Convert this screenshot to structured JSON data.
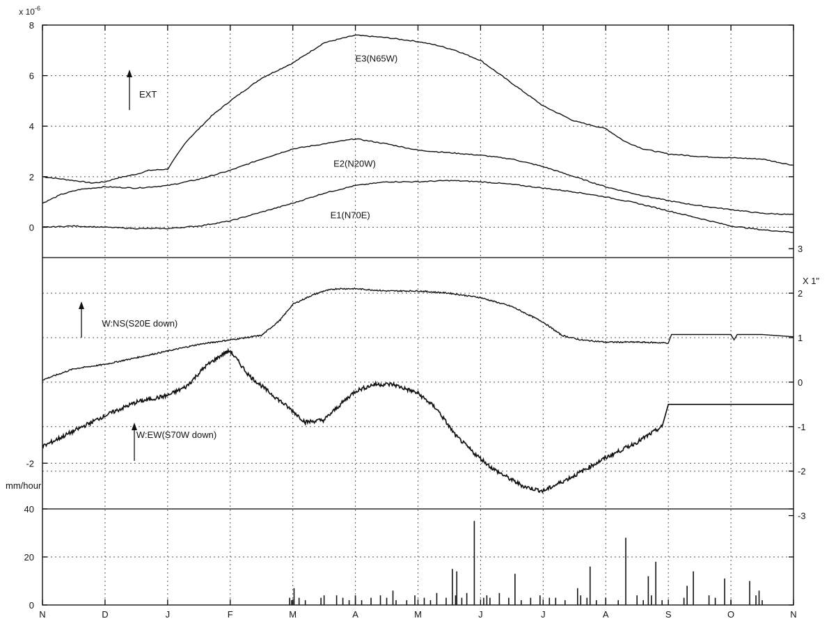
{
  "chart_data": {
    "type": "line",
    "months": [
      "N",
      "D",
      "J",
      "F",
      "M",
      "A",
      "M",
      "J",
      "J",
      "A",
      "S",
      "O",
      "N"
    ],
    "x_domain": [
      0,
      12
    ],
    "panels": [
      {
        "id": "strain",
        "y_multiplier_label": "x 10",
        "y_exponent": "-6",
        "ylim": [
          -1.2,
          8
        ],
        "yticks": [
          "8",
          "6",
          "4",
          "2",
          "0"
        ],
        "yticks_values": [
          8,
          6,
          4,
          2,
          0
        ],
        "arrow_label": "EXT",
        "series": [
          {
            "name": "E3(N65W)",
            "x": [
              0,
              0.5,
              0.8,
              1.0,
              1.2,
              1.5,
              1.7,
              2.0,
              2.3,
              2.7,
              3.0,
              3.5,
              4.0,
              4.5,
              5.0,
              5.5,
              6.0,
              6.3,
              6.6,
              7.0,
              7.5,
              8.0,
              8.5,
              9.0,
              9.3,
              9.6,
              10.0,
              10.5,
              11.0,
              11.5,
              12.0
            ],
            "y": [
              2.0,
              1.85,
              1.75,
              1.8,
              1.95,
              2.1,
              2.25,
              2.3,
              3.4,
              4.4,
              5.0,
              5.9,
              6.5,
              7.3,
              7.6,
              7.5,
              7.35,
              7.2,
              7.0,
              6.6,
              5.7,
              4.8,
              4.2,
              3.9,
              3.4,
              3.1,
              2.9,
              2.8,
              2.75,
              2.7,
              2.45
            ]
          },
          {
            "name": "E2(N20W)",
            "x": [
              0,
              0.3,
              0.6,
              1.0,
              1.5,
              2.0,
              2.5,
              3.0,
              3.5,
              4.0,
              4.5,
              5.0,
              5.5,
              6.0,
              6.5,
              7.0,
              7.5,
              8.0,
              8.5,
              9.0,
              9.5,
              10.0,
              10.5,
              11.0,
              11.5,
              12.0
            ],
            "y": [
              0.95,
              1.3,
              1.5,
              1.6,
              1.55,
              1.65,
              1.9,
              2.25,
              2.7,
              3.1,
              3.3,
              3.5,
              3.3,
              3.05,
              2.95,
              2.85,
              2.7,
              2.4,
              2.0,
              1.6,
              1.3,
              1.05,
              0.85,
              0.7,
              0.55,
              0.5
            ]
          },
          {
            "name": "E1(N70E)",
            "x": [
              0,
              0.5,
              1.0,
              1.5,
              2.0,
              2.5,
              3.0,
              3.5,
              4.0,
              4.5,
              5.0,
              5.5,
              6.0,
              6.5,
              7.0,
              7.5,
              8.0,
              8.5,
              9.0,
              9.5,
              10.0,
              10.5,
              11.0,
              11.5,
              12.0
            ],
            "y": [
              0.0,
              0.05,
              0.0,
              -0.05,
              -0.05,
              0.05,
              0.25,
              0.6,
              0.95,
              1.35,
              1.65,
              1.8,
              1.8,
              1.85,
              1.8,
              1.7,
              1.55,
              1.4,
              1.2,
              0.95,
              0.65,
              0.35,
              0.05,
              -0.1,
              -0.2
            ]
          }
        ]
      },
      {
        "id": "tilt",
        "left_ylim": [
          -2.7,
          1.15
        ],
        "left_yticks": [
          "-2"
        ],
        "left_yticks_values": [
          -2
        ],
        "right_multiplier_label": "X 1\"",
        "right_ylim": [
          -2.85,
          2.8
        ],
        "right_yticks": [
          "3",
          "2",
          "1",
          "0",
          "-1",
          "-2",
          "-3"
        ],
        "right_yticks_values": [
          3,
          2,
          1,
          0,
          -1,
          -2,
          -3
        ],
        "series": [
          {
            "name": "W:NS(S20E down)",
            "axis": "right",
            "x": [
              0,
              0.5,
              1.0,
              1.5,
              2.0,
              2.5,
              3.0,
              3.5,
              3.8,
              4.0,
              4.3,
              4.5,
              4.7,
              5.0,
              5.5,
              6.0,
              6.5,
              7.0,
              7.5,
              8.0,
              8.3,
              8.6,
              9.0,
              9.5,
              10.0,
              10.05,
              10.5,
              11.0,
              11.05,
              11.1,
              11.5,
              12.0
            ],
            "y": [
              0.05,
              0.3,
              0.4,
              0.55,
              0.7,
              0.85,
              0.95,
              1.05,
              1.4,
              1.75,
              1.95,
              2.05,
              2.1,
              2.1,
              2.05,
              2.05,
              2.0,
              1.9,
              1.7,
              1.35,
              1.05,
              0.95,
              0.9,
              0.9,
              0.88,
              1.07,
              1.07,
              1.07,
              0.95,
              1.07,
              1.07,
              1.02
            ]
          },
          {
            "name": "W:EW(S70W down)",
            "axis": "right",
            "x": [
              0,
              0.5,
              1.0,
              1.5,
              2.0,
              2.3,
              2.6,
              2.9,
              3.0,
              3.3,
              3.6,
              4.0,
              4.2,
              4.5,
              4.8,
              5.0,
              5.3,
              5.6,
              6.0,
              6.3,
              6.6,
              6.9,
              7.2,
              7.5,
              7.7,
              8.0,
              8.5,
              9.0,
              9.5,
              9.9,
              10.0,
              10.5,
              11.0,
              11.5,
              12.0
            ],
            "y": [
              -1.45,
              -1.1,
              -0.75,
              -0.45,
              -0.3,
              -0.1,
              0.35,
              0.65,
              0.7,
              0.15,
              -0.2,
              -0.65,
              -0.9,
              -0.85,
              -0.45,
              -0.2,
              -0.05,
              -0.05,
              -0.25,
              -0.6,
              -1.2,
              -1.6,
              -1.95,
              -2.2,
              -2.35,
              -2.45,
              -2.1,
              -1.7,
              -1.35,
              -1.0,
              -0.5,
              -0.5,
              -0.5,
              -0.5,
              -0.5
            ]
          }
        ]
      },
      {
        "id": "rain",
        "type": "bar",
        "ylabel": "mm/hour",
        "ylim": [
          0,
          40
        ],
        "yticks": [
          "40",
          "20",
          "0"
        ],
        "yticks_values": [
          40,
          20,
          0
        ],
        "bars": {
          "x": [
            3.95,
            3.98,
            4.02,
            4.1,
            4.2,
            4.45,
            4.5,
            4.7,
            4.8,
            4.9,
            5.0,
            5.1,
            5.25,
            5.4,
            5.5,
            5.6,
            5.65,
            5.82,
            5.95,
            6.1,
            6.2,
            6.3,
            6.45,
            6.55,
            6.6,
            6.62,
            6.7,
            6.78,
            6.9,
            7.05,
            7.1,
            7.15,
            7.3,
            7.45,
            7.55,
            7.65,
            7.8,
            7.95,
            8.1,
            8.2,
            8.35,
            8.55,
            8.6,
            8.7,
            8.75,
            8.85,
            9.0,
            9.2,
            9.32,
            9.5,
            9.6,
            9.68,
            9.73,
            9.8,
            9.9,
            10.25,
            10.3,
            10.4,
            10.65,
            10.75,
            10.9,
            11.0,
            11.3,
            11.4,
            11.45,
            11.5
          ],
          "values": [
            3,
            2,
            7,
            3,
            2,
            3,
            4,
            4,
            3,
            2,
            4,
            2,
            3,
            4,
            3,
            6,
            2,
            2,
            4,
            3,
            2,
            5,
            3,
            15,
            4,
            14,
            3,
            5,
            35,
            3,
            4,
            3,
            5,
            3,
            13,
            2,
            3,
            4,
            3,
            3,
            2,
            7,
            4,
            3,
            16,
            2,
            3,
            2,
            28,
            4,
            2,
            12,
            4,
            18,
            2,
            3,
            8,
            14,
            4,
            3,
            11,
            2,
            10,
            4,
            6,
            2
          ]
        }
      }
    ]
  }
}
